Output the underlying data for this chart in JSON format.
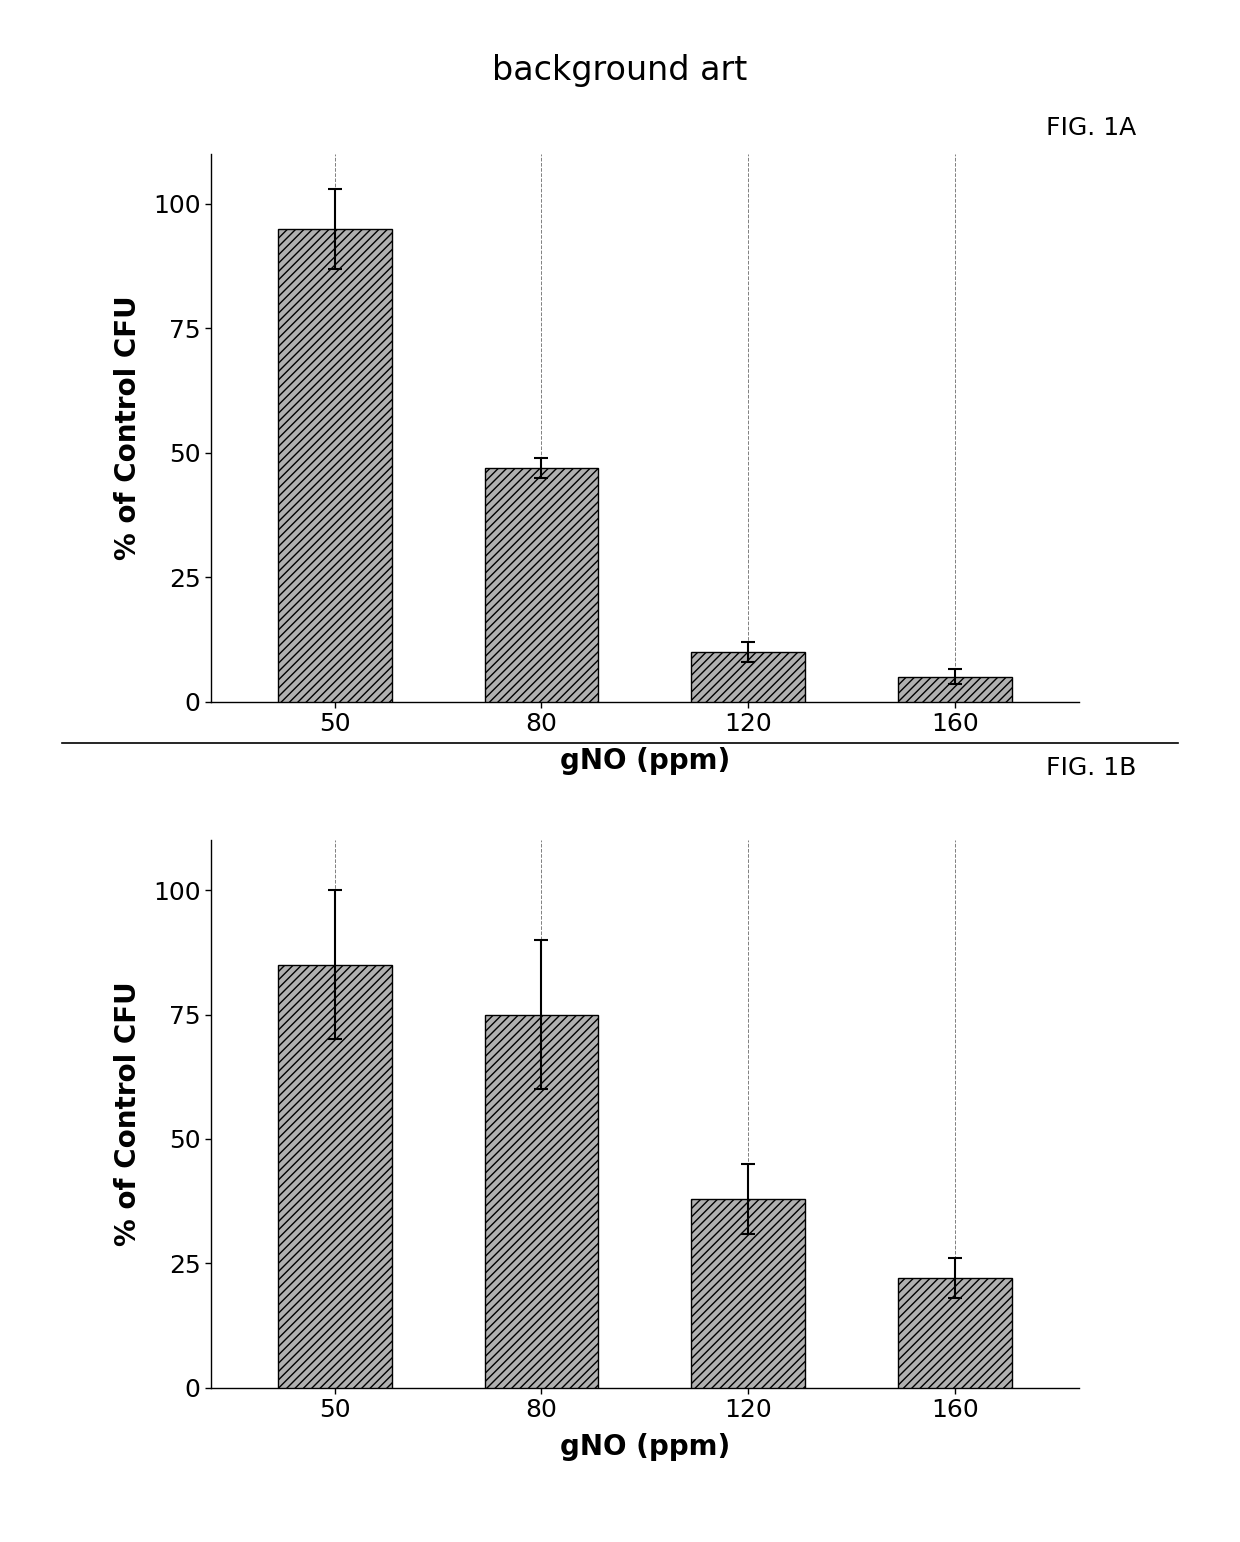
{
  "title": "background art",
  "fig1a_label": "FIG. 1A",
  "fig1b_label": "FIG. 1B",
  "categories": [
    "50",
    "80",
    "120",
    "160"
  ],
  "xlabel": "gNO (ppm)",
  "ylabel": "% of Control CFU",
  "fig1a_values": [
    95,
    47,
    10,
    5
  ],
  "fig1a_errors": [
    8,
    2,
    2,
    1.5
  ],
  "fig1b_values": [
    85,
    75,
    38,
    22
  ],
  "fig1b_errors": [
    15,
    15,
    7,
    4
  ],
  "bar_color": "#b0b0b0",
  "hatch": "////",
  "ylim": [
    0,
    110
  ],
  "yticks": [
    0,
    25,
    50,
    75,
    100
  ],
  "background_color": "#ffffff",
  "title_fontsize": 24,
  "label_fontsize": 20,
  "tick_fontsize": 18,
  "fig_label_fontsize": 18,
  "bar_width": 0.55
}
